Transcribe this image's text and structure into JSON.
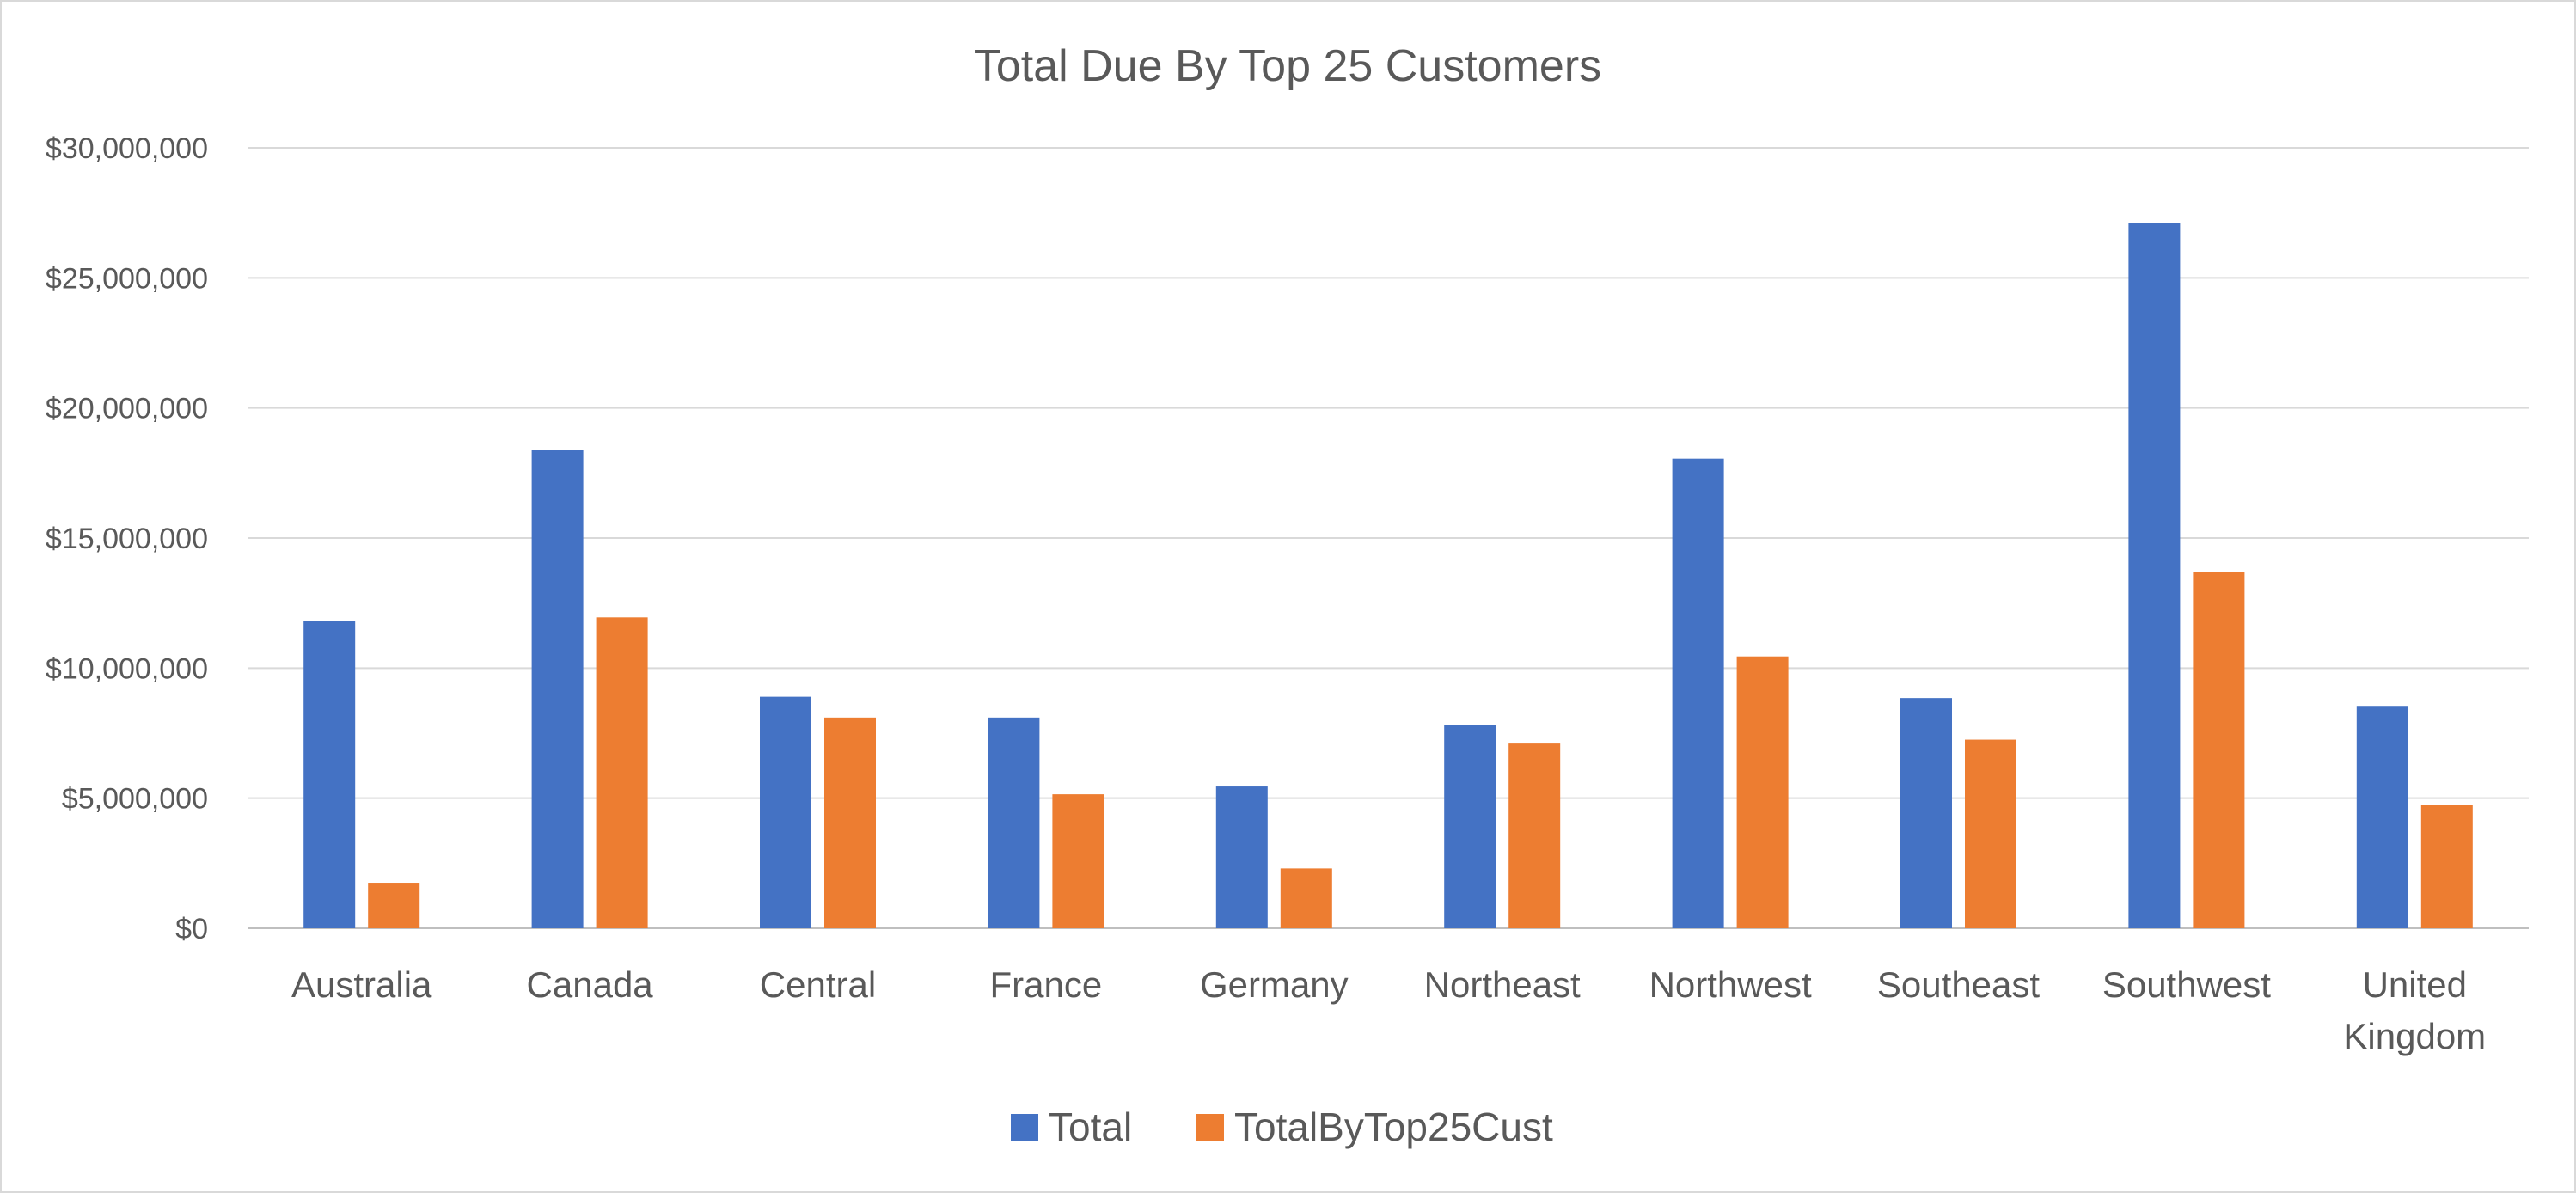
{
  "chart_data": {
    "type": "bar",
    "title": "Total Due By Top 25 Customers",
    "categories": [
      "Australia",
      "Canada",
      "Central",
      "France",
      "Germany",
      "Northeast",
      "Northwest",
      "Southeast",
      "Southwest",
      "United Kingdom"
    ],
    "series": [
      {
        "name": "Total",
        "color": "#4472c4",
        "values": [
          11800000,
          18400000,
          8900000,
          8100000,
          5450000,
          7800000,
          18050000,
          8850000,
          27100000,
          8550000
        ]
      },
      {
        "name": "TotalByTop25Cust",
        "color": "#ed7d31",
        "values": [
          1750000,
          11950000,
          8100000,
          5150000,
          2300000,
          7100000,
          10450000,
          7250000,
          13700000,
          4750000
        ]
      }
    ],
    "ylim": [
      0,
      30000000
    ],
    "yticks": [
      {
        "value": 0,
        "label": "$0"
      },
      {
        "value": 5000000,
        "label": "$5,000,000"
      },
      {
        "value": 10000000,
        "label": "$10,000,000"
      },
      {
        "value": 15000000,
        "label": "$15,000,000"
      },
      {
        "value": 20000000,
        "label": "$20,000,000"
      },
      {
        "value": 25000000,
        "label": "$25,000,000"
      },
      {
        "value": 30000000,
        "label": "$30,000,000"
      }
    ],
    "grid": true,
    "legend_position": "bottom"
  }
}
